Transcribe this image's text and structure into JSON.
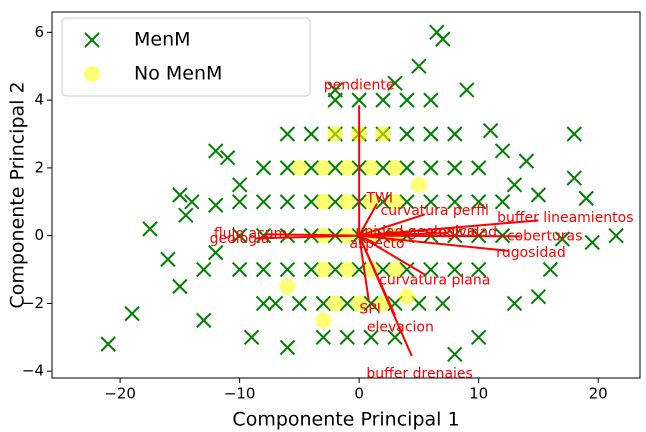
{
  "chart_data": {
    "type": "biplot",
    "xlabel": "Componente Principal 1",
    "ylabel": "Componente Principal 2",
    "xlim": [
      -25.7,
      23.5
    ],
    "ylim": [
      -4.2,
      6.6
    ],
    "xticks": [
      {
        "value": -20,
        "label": "−20"
      },
      {
        "value": -10,
        "label": "−10"
      },
      0,
      10,
      20
    ],
    "yticks": [
      {
        "value": -4,
        "label": "−4"
      },
      {
        "value": -2,
        "label": "−2"
      },
      0,
      2,
      4,
      6
    ],
    "legend": "upper left",
    "series": [
      {
        "name": "MenM",
        "color": "#008000",
        "marker": "x",
        "x": [
          -2,
          0,
          2,
          4,
          6,
          -6,
          -4,
          -2,
          0,
          2,
          4,
          6,
          8,
          -8,
          -6,
          -4,
          -2,
          0,
          2,
          4,
          6,
          8,
          10,
          -10,
          -8,
          -6,
          -4,
          -2,
          0,
          2,
          4,
          6,
          8,
          10,
          12,
          -10,
          -8,
          -6,
          -4,
          -2,
          0,
          2,
          4,
          6,
          8,
          10,
          12,
          -10,
          -8,
          -6,
          -4,
          -2,
          0,
          2,
          4,
          6,
          8,
          10,
          -7,
          -5,
          -3,
          -1,
          1,
          3,
          5,
          7,
          -3,
          -1,
          1,
          3,
          -21,
          -19,
          -17.5,
          -16,
          -15,
          -14.5,
          -14,
          -15,
          -13,
          -12,
          -11,
          18,
          19,
          21.5,
          19.5,
          17,
          18,
          14,
          15,
          13,
          16,
          10,
          8,
          6.5,
          7,
          5,
          -2,
          3,
          -9,
          -6,
          9,
          11,
          12,
          -10,
          -8,
          13,
          15,
          -13,
          -12,
          -12
        ],
        "y": [
          4,
          4,
          4,
          4,
          4,
          3,
          3,
          3,
          3,
          3,
          3,
          3,
          3,
          2,
          2,
          2,
          2,
          2,
          2,
          2,
          2,
          2,
          2,
          1,
          1,
          1,
          1,
          1,
          1,
          1,
          1,
          1,
          1,
          1,
          1,
          0,
          0,
          0,
          0,
          0,
          0,
          0,
          0,
          0,
          0,
          0,
          0,
          -1,
          -1,
          -1,
          -1,
          -1,
          -1,
          -1,
          -1,
          -1,
          -1,
          -1,
          -2,
          -2,
          -2,
          -2,
          -2,
          -2,
          -2,
          -2,
          -3,
          -3,
          -3,
          -3,
          -3.2,
          -2.3,
          0.2,
          -0.7,
          1.2,
          0.6,
          1,
          -1.5,
          -2.5,
          2.5,
          2.3,
          3,
          1.1,
          0,
          -0.2,
          -0.1,
          1.7,
          2.2,
          1.2,
          -2,
          -1,
          -3,
          -3.5,
          6,
          5.8,
          5,
          4.3,
          4.5,
          -3,
          -3.3,
          4.3,
          3.1,
          2.5,
          1.5,
          -2,
          1.5,
          -1.8,
          -1,
          -0.5,
          0.9
        ]
      },
      {
        "name": "No MenM",
        "color": "#ffff00",
        "marker": "o",
        "x": [
          -2,
          0,
          2,
          -3,
          -1,
          1,
          3,
          -3,
          -1,
          1,
          3,
          -3,
          -1,
          1,
          3,
          -3,
          -1,
          1,
          3,
          -2,
          0,
          2,
          -3,
          -6,
          5,
          -5,
          4
        ],
        "y": [
          3,
          3,
          3,
          2,
          2,
          2,
          2,
          1,
          1,
          1,
          1,
          0,
          0,
          0,
          0,
          -1,
          -1,
          -1,
          -1,
          -2,
          -2,
          -2,
          -2.5,
          -1.5,
          1.5,
          2,
          -1.8
        ]
      }
    ],
    "loadings_color": "#ff0000",
    "loadings": [
      {
        "label": "pendiente",
        "x": 0,
        "y": 3.85
      },
      {
        "label": "TWI",
        "x": 1.5,
        "y": 0.95
      },
      {
        "label": "curvatura perfil",
        "x": 5.5,
        "y": 0.63
      },
      {
        "label": "buffer lineamientos",
        "x": 15,
        "y": 0.45
      },
      {
        "label": "unidad geologica",
        "x": 4.1,
        "y": 0.1
      },
      {
        "label": "erosividad",
        "x": 7.4,
        "y": 0.08
      },
      {
        "label": "coberturas",
        "x": 13.5,
        "y": -0.02
      },
      {
        "label": "rugosidad",
        "x": 12.5,
        "y": -0.45
      },
      {
        "label": "aspecto",
        "x": 1.3,
        "y": -0.22
      },
      {
        "label": "curvatura plana",
        "x": 5.5,
        "y": -1.15
      },
      {
        "label": "SPI",
        "x": 0.8,
        "y": -1.9
      },
      {
        "label": "elevacion",
        "x": 3,
        "y": -2.35
      },
      {
        "label": "buffer drenajes",
        "x": 4.4,
        "y": -3.55
      },
      {
        "label": "flujo acum",
        "x": -7.9,
        "y": 0.04
      },
      {
        "label": "geologia",
        "x": -8.7,
        "y": -0.08
      }
    ]
  }
}
